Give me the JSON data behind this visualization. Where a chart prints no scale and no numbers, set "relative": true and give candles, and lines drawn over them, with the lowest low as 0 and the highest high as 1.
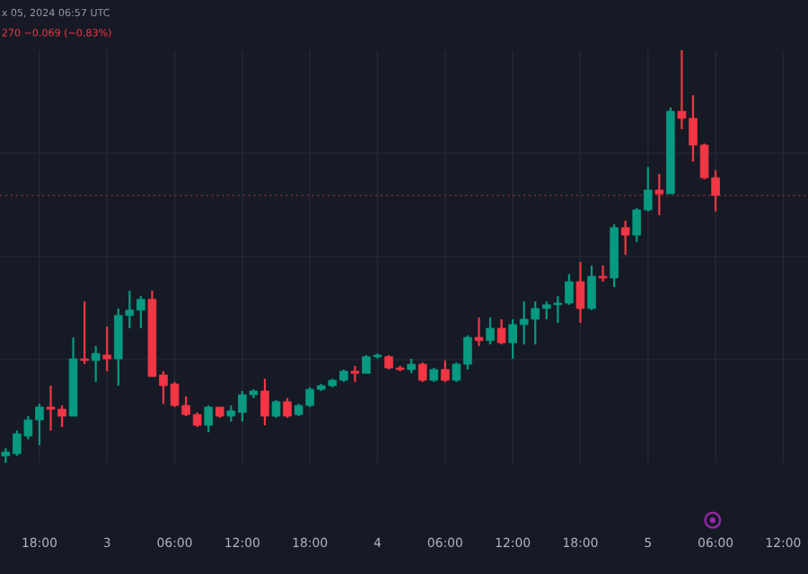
{
  "chart_data": {
    "type": "candlestick",
    "relative": true,
    "annotations": [
      "x 05, 2024 06:57 UTC",
      "270 −0.069 (−0.83%)"
    ],
    "x": [
      "2024-11-02T15:00",
      "2024-11-02T16:00",
      "2024-11-02T17:00",
      "2024-11-02T18:00",
      "2024-11-02T19:00",
      "2024-11-02T20:00",
      "2024-11-02T21:00",
      "2024-11-02T22:00",
      "2024-11-02T23:00",
      "2024-11-03T00:00",
      "2024-11-03T01:00",
      "2024-11-03T02:00",
      "2024-11-03T03:00",
      "2024-11-03T04:00",
      "2024-11-03T05:00",
      "2024-11-03T06:00",
      "2024-11-03T07:00",
      "2024-11-03T08:00",
      "2024-11-03T09:00",
      "2024-11-03T10:00",
      "2024-11-03T11:00",
      "2024-11-03T12:00",
      "2024-11-03T13:00",
      "2024-11-03T14:00",
      "2024-11-03T15:00",
      "2024-11-03T16:00",
      "2024-11-03T17:00",
      "2024-11-03T18:00",
      "2024-11-03T19:00",
      "2024-11-03T20:00",
      "2024-11-03T21:00",
      "2024-11-03T22:00",
      "2024-11-03T23:00",
      "2024-11-04T00:00",
      "2024-11-04T01:00",
      "2024-11-04T02:00",
      "2024-11-04T03:00",
      "2024-11-04T04:00",
      "2024-11-04T05:00",
      "2024-11-04T06:00",
      "2024-11-04T07:00",
      "2024-11-04T08:00",
      "2024-11-04T09:00",
      "2024-11-04T10:00",
      "2024-11-04T11:00",
      "2024-11-04T12:00",
      "2024-11-04T13:00",
      "2024-11-04T14:00",
      "2024-11-04T15:00",
      "2024-11-04T16:00",
      "2024-11-04T17:00",
      "2024-11-04T18:00",
      "2024-11-04T19:00",
      "2024-11-04T20:00",
      "2024-11-04T21:00",
      "2024-11-04T22:00",
      "2024-11-04T23:00",
      "2024-11-05T00:00",
      "2024-11-05T01:00",
      "2024-11-05T02:00",
      "2024-11-05T03:00",
      "2024-11-05T04:00",
      "2024-11-05T05:00",
      "2024-11-05T06:00"
    ],
    "ohlc": [
      [
        0.017,
        0.035,
        0,
        0.026
      ],
      [
        0.022,
        0.078,
        0.017,
        0.07
      ],
      [
        0.065,
        0.113,
        0.057,
        0.104
      ],
      [
        0.104,
        0.143,
        0.043,
        0.135
      ],
      [
        0.135,
        0.187,
        0.078,
        0.13
      ],
      [
        0.13,
        0.139,
        0.087,
        0.113
      ],
      [
        0.113,
        0.304,
        0.113,
        0.252
      ],
      [
        0.252,
        0.391,
        0.239,
        0.248
      ],
      [
        0.248,
        0.283,
        0.196,
        0.265
      ],
      [
        0.261,
        0.33,
        0.222,
        0.252
      ],
      [
        0.252,
        0.374,
        0.187,
        0.357
      ],
      [
        0.357,
        0.417,
        0.326,
        0.37
      ],
      [
        0.37,
        0.404,
        0.326,
        0.396
      ],
      [
        0.396,
        0.417,
        0.209,
        0.209
      ],
      [
        0.213,
        0.222,
        0.143,
        0.187
      ],
      [
        0.191,
        0.196,
        0.135,
        0.139
      ],
      [
        0.139,
        0.161,
        0.113,
        0.117
      ],
      [
        0.117,
        0.122,
        0.087,
        0.091
      ],
      [
        0.091,
        0.139,
        0.074,
        0.135
      ],
      [
        0.135,
        0.135,
        0.109,
        0.113
      ],
      [
        0.113,
        0.139,
        0.1,
        0.126
      ],
      [
        0.122,
        0.174,
        0.1,
        0.165
      ],
      [
        0.165,
        0.178,
        0.157,
        0.174
      ],
      [
        0.174,
        0.204,
        0.091,
        0.113
      ],
      [
        0.113,
        0.152,
        0.109,
        0.148
      ],
      [
        0.148,
        0.157,
        0.109,
        0.113
      ],
      [
        0.117,
        0.143,
        0.113,
        0.139
      ],
      [
        0.139,
        0.183,
        0.135,
        0.178
      ],
      [
        0.178,
        0.191,
        0.174,
        0.187
      ],
      [
        0.187,
        0.204,
        0.183,
        0.2
      ],
      [
        0.2,
        0.226,
        0.196,
        0.222
      ],
      [
        0.222,
        0.235,
        0.196,
        0.217
      ],
      [
        0.217,
        0.261,
        0.217,
        0.257
      ],
      [
        0.257,
        0.265,
        0.252,
        0.261
      ],
      [
        0.257,
        0.261,
        0.226,
        0.23
      ],
      [
        0.23,
        0.235,
        0.222,
        0.226
      ],
      [
        0.226,
        0.252,
        0.217,
        0.239
      ],
      [
        0.239,
        0.243,
        0.196,
        0.2
      ],
      [
        0.2,
        0.23,
        0.196,
        0.226
      ],
      [
        0.226,
        0.248,
        0.196,
        0.2
      ],
      [
        0.2,
        0.243,
        0.196,
        0.239
      ],
      [
        0.239,
        0.309,
        0.226,
        0.304
      ],
      [
        0.304,
        0.352,
        0.283,
        0.296
      ],
      [
        0.296,
        0.352,
        0.287,
        0.326
      ],
      [
        0.326,
        0.348,
        0.287,
        0.291
      ],
      [
        0.291,
        0.348,
        0.252,
        0.335
      ],
      [
        0.335,
        0.391,
        0.287,
        0.348
      ],
      [
        0.348,
        0.391,
        0.287,
        0.374
      ],
      [
        0.374,
        0.391,
        0.348,
        0.383
      ],
      [
        0.383,
        0.404,
        0.339,
        0.387
      ],
      [
        0.387,
        0.457,
        0.383,
        0.439
      ],
      [
        0.439,
        0.487,
        0.339,
        0.374
      ],
      [
        0.374,
        0.478,
        0.37,
        0.452
      ],
      [
        0.452,
        0.478,
        0.439,
        0.448
      ],
      [
        0.448,
        0.578,
        0.426,
        0.57
      ],
      [
        0.57,
        0.587,
        0.504,
        0.552
      ],
      [
        0.552,
        0.617,
        0.535,
        0.613
      ],
      [
        0.613,
        0.717,
        0.609,
        0.661
      ],
      [
        0.661,
        0.7,
        0.6,
        0.652
      ],
      [
        0.652,
        0.861,
        0.652,
        0.852
      ],
      [
        0.852,
        1.0,
        0.809,
        0.835
      ],
      [
        0.835,
        0.891,
        0.73,
        0.77
      ],
      [
        0.77,
        0.774,
        0.687,
        0.691
      ],
      [
        0.691,
        0.709,
        0.609,
        0.648
      ]
    ],
    "colors": [
      "#089981",
      "#089981",
      "#089981",
      "#089981",
      "#f23645",
      "#f23645",
      "#089981",
      "#f23645",
      "#089981",
      "#f23645",
      "#089981",
      "#089981",
      "#089981",
      "#f23645",
      "#f23645",
      "#f23645",
      "#f23645",
      "#f23645",
      "#089981",
      "#f23645",
      "#089981",
      "#089981",
      "#089981",
      "#f23645",
      "#089981",
      "#f23645",
      "#089981",
      "#089981",
      "#089981",
      "#089981",
      "#089981",
      "#f23645",
      "#089981",
      "#089981",
      "#f23645",
      "#f23645",
      "#089981",
      "#f23645",
      "#089981",
      "#f23645",
      "#089981",
      "#089981",
      "#f23645",
      "#089981",
      "#f23645",
      "#089981",
      "#089981",
      "#089981",
      "#089981",
      "#089981",
      "#089981",
      "#f23645",
      "#089981",
      "#f23645",
      "#089981",
      "#f23645",
      "#089981",
      "#089981",
      "#f23645",
      "#089981",
      "#f23645",
      "#f23645",
      "#f23645",
      "#f23645"
    ],
    "xlim": [
      "2024-11-02T14:30",
      "2024-11-05T14:12"
    ],
    "xticks": [
      {
        "value": "2024-11-02T18:00",
        "label": "18:00"
      },
      {
        "value": "2024-11-03T00:00",
        "label": "3"
      },
      {
        "value": "2024-11-03T06:00",
        "label": "06:00"
      },
      {
        "value": "2024-11-03T12:00",
        "label": "12:00"
      },
      {
        "value": "2024-11-03T18:00",
        "label": "18:00"
      },
      {
        "value": "2024-11-04T00:00",
        "label": "4"
      },
      {
        "value": "2024-11-04T06:00",
        "label": "06:00"
      },
      {
        "value": "2024-11-04T12:00",
        "label": "12:00"
      },
      {
        "value": "2024-11-04T18:00",
        "label": "18:00"
      },
      {
        "value": "2024-11-05T00:00",
        "label": "5"
      },
      {
        "value": "2024-11-05T06:00",
        "label": "06:00"
      },
      {
        "value": "2024-11-05T12:00",
        "label": "12:00"
      }
    ],
    "tick_labels": "x",
    "grid": true,
    "ref_lines": [
      {
        "axis": "y",
        "value": 0.648,
        "color": "#5a2a33",
        "line_style": "dotted"
      }
    ]
  }
}
